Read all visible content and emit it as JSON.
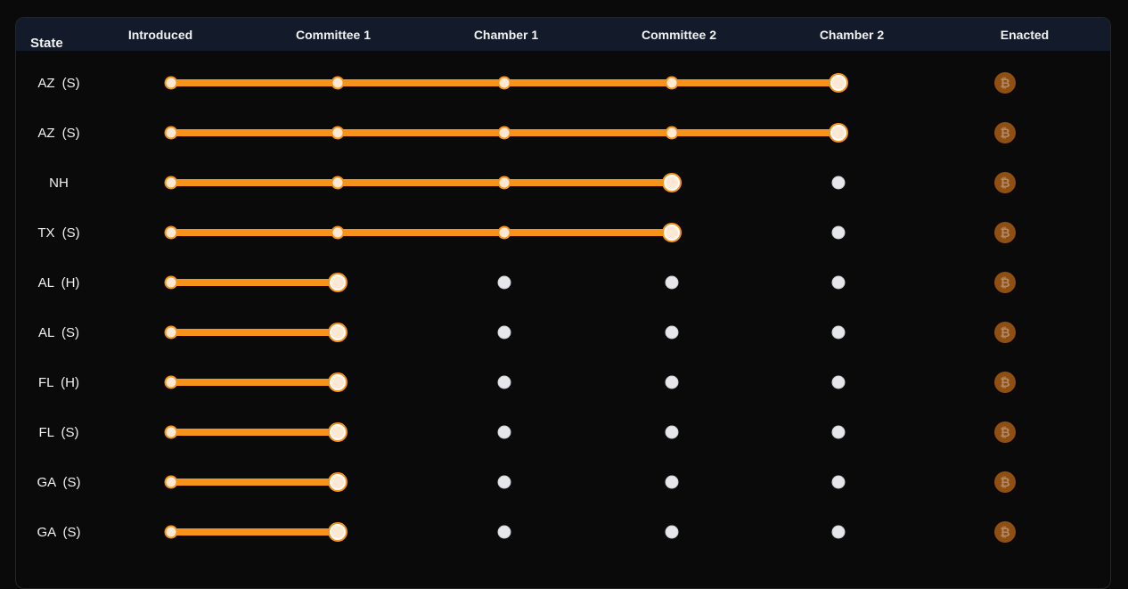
{
  "header": {
    "columns": [
      "State",
      "Introduced",
      "Committee 1",
      "Chamber 1",
      "Committee 2",
      "Chamber 2",
      "Enacted"
    ]
  },
  "stages_total": 5,
  "rows": [
    {
      "state": "AZ (S)",
      "stage_reached": 4,
      "enacted": false
    },
    {
      "state": "AZ (S)",
      "stage_reached": 4,
      "enacted": false
    },
    {
      "state": "NH",
      "stage_reached": 3,
      "enacted": false
    },
    {
      "state": "TX (S)",
      "stage_reached": 3,
      "enacted": false
    },
    {
      "state": "AL (H)",
      "stage_reached": 1,
      "enacted": false
    },
    {
      "state": "AL (S)",
      "stage_reached": 1,
      "enacted": false
    },
    {
      "state": "FL (H)",
      "stage_reached": 1,
      "enacted": false
    },
    {
      "state": "FL (S)",
      "stage_reached": 1,
      "enacted": false
    },
    {
      "state": "GA (S)",
      "stage_reached": 1,
      "enacted": false
    },
    {
      "state": "GA (S)",
      "stage_reached": 1,
      "enacted": false
    }
  ],
  "icons": {
    "enacted": "bitcoin-icon"
  },
  "colors": {
    "progress": "#f7931a",
    "header_bg": "#131a2a",
    "pending_dot": "#e6e7eb",
    "coin_dim": "#8f4f12"
  }
}
